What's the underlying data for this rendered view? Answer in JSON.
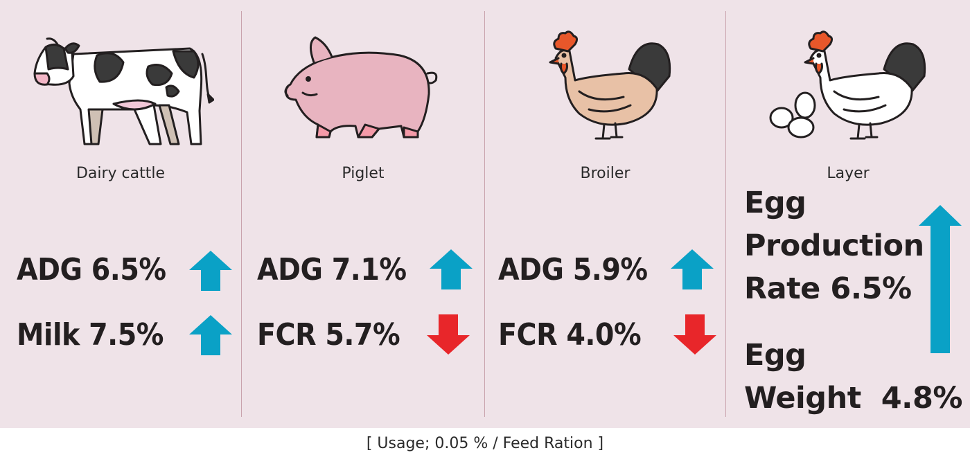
{
  "columns": [
    {
      "label": "Dairy cattle",
      "icon": "dairy-cow-icon",
      "metrics": [
        {
          "text": "ADG 6.5%",
          "direction": "up"
        },
        {
          "text": "Milk 7.5%",
          "direction": "up"
        }
      ]
    },
    {
      "label": "Piglet",
      "icon": "pig-icon",
      "metrics": [
        {
          "text": "ADG 7.1%",
          "direction": "up"
        },
        {
          "text": "FCR 5.7%",
          "direction": "down"
        }
      ]
    },
    {
      "label": "Broiler",
      "icon": "broiler-chicken-icon",
      "metrics": [
        {
          "text": "ADG 5.9%",
          "direction": "up"
        },
        {
          "text": "FCR 4.0%",
          "direction": "down"
        }
      ]
    },
    {
      "label": "Layer",
      "icon": "layer-hen-with-eggs-icon",
      "metrics": [
        {
          "lines": [
            "Egg",
            "Production",
            "Rate 6.5%"
          ],
          "direction": "up"
        },
        {
          "lines": [
            "Egg",
            "Weight  4.8%"
          ]
        }
      ]
    }
  ],
  "footer": "[ Usage; 0.05 % / Feed Ration ]",
  "colors": {
    "background": "#efe3e8",
    "up_arrow": "#0aa1c6",
    "down_arrow": "#e8262a",
    "divider": "#c9a3ad"
  }
}
